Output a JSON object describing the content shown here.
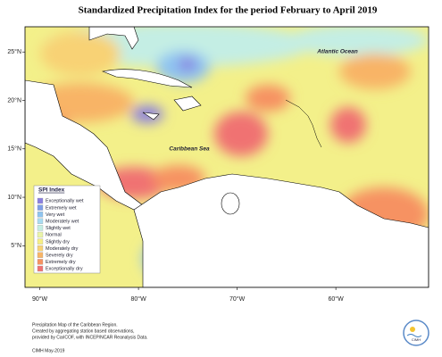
{
  "map": {
    "title": "Standardized Precipitation Index for the period February to April 2019",
    "labels": [
      "Atlantic Ocean",
      "Caribbean Sea"
    ],
    "xlim": [
      -91.5,
      -50.6
    ],
    "ylim": [
      0.7,
      27.6
    ],
    "xticks": [
      {
        "value": -90,
        "label": "90°W"
      },
      {
        "value": -80,
        "label": "80°W"
      },
      {
        "value": -70,
        "label": "70°W"
      },
      {
        "value": -60,
        "label": "60°W"
      }
    ],
    "yticks": [
      {
        "value": 25,
        "label": "25°N"
      },
      {
        "value": 20,
        "label": "20°N"
      },
      {
        "value": 15,
        "label": "15°N"
      },
      {
        "value": 10,
        "label": "10°N"
      },
      {
        "value": 5,
        "label": "5°N"
      }
    ],
    "legend": {
      "title": "SPI Index",
      "entries": [
        {
          "name": "Exceptionally wet",
          "color": "#8a7fe0"
        },
        {
          "name": "Extremely wet",
          "color": "#7f9fe8"
        },
        {
          "name": "Very wet",
          "color": "#8fc4f0"
        },
        {
          "name": "Moderately wet",
          "color": "#a8dcf2"
        },
        {
          "name": "Slightly wet",
          "color": "#c4eee4"
        },
        {
          "name": "Normal",
          "color": "#eaf4a8"
        },
        {
          "name": "Slightly dry",
          "color": "#f6ee84"
        },
        {
          "name": "Moderately dry",
          "color": "#f8d274"
        },
        {
          "name": "Severely dry",
          "color": "#f8b466"
        },
        {
          "name": "Extremely dry",
          "color": "#f69262"
        },
        {
          "name": "Exceptionally dry",
          "color": "#f07272"
        }
      ]
    },
    "footer": [
      "Precipitation Map of the Caribbean Region.",
      "Created by aggregating station based observations,",
      "provided by CariCOF, with INCEP/NCAR Reanalysis Data."
    ],
    "credit": "CIMH May-2019",
    "logo": "CIMH"
  }
}
